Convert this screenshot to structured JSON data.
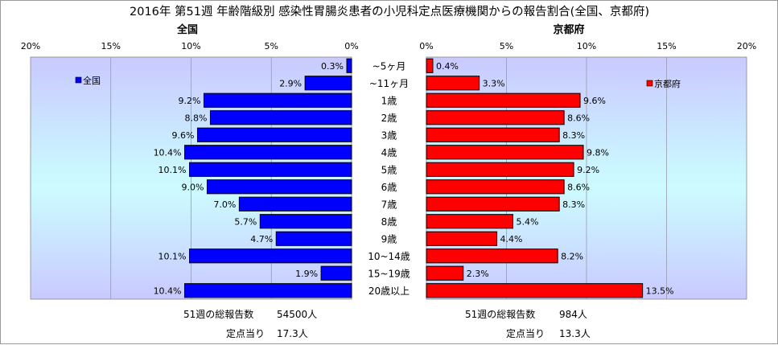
{
  "title": "2016年 第51週 年齢階級別 感染性胃腸炎患者の小児科定点医療機関からの報告割合(全国、京都府)",
  "left_panel": {
    "header": "全国",
    "legend": "全国",
    "color": "#0000ff",
    "summary_total_label": "51週の総報告数",
    "summary_total_value": "54500人",
    "summary_per_label": "定点当り",
    "summary_per_value": "17.3人"
  },
  "right_panel": {
    "header": "京都府",
    "legend": "京都府",
    "color": "#ff0000",
    "summary_total_label": "51週の総報告数",
    "summary_total_value": "984人",
    "summary_per_label": "定点当り",
    "summary_per_value": "13.3人"
  },
  "chart_data": {
    "type": "bar",
    "orientation": "horizontal-butterfly",
    "categories": [
      "~5ヶ月",
      "~11ヶ月",
      "1歳",
      "2歳",
      "3歳",
      "4歳",
      "5歳",
      "6歳",
      "7歳",
      "8歳",
      "9歳",
      "10~14歳",
      "15~19歳",
      "20歳以上"
    ],
    "series": [
      {
        "name": "全国",
        "values": [
          0.3,
          2.9,
          9.2,
          8.8,
          9.6,
          10.4,
          10.1,
          9.0,
          7.0,
          5.7,
          4.7,
          10.1,
          1.9,
          10.4
        ],
        "labels": [
          "0.3%",
          "2.9%",
          "9.2%",
          "8.8%",
          "9.6%",
          "10.4%",
          "10.1%",
          "9.0%",
          "7.0%",
          "5.7%",
          "4.7%",
          "10.1%",
          "1.9%",
          "10.4%"
        ]
      },
      {
        "name": "京都府",
        "values": [
          0.4,
          3.3,
          9.6,
          8.6,
          8.3,
          9.8,
          9.2,
          8.6,
          8.3,
          5.4,
          4.4,
          8.2,
          2.3,
          13.5
        ],
        "labels": [
          "0.4%",
          "3.3%",
          "9.6%",
          "8.6%",
          "8.3%",
          "9.8%",
          "9.2%",
          "8.6%",
          "8.3%",
          "5.4%",
          "4.4%",
          "8.2%",
          "2.3%",
          "13.5%"
        ]
      }
    ],
    "xlim": [
      0,
      20
    ],
    "ticks_left": [
      "20%",
      "15%",
      "10%",
      "5%",
      "0%"
    ],
    "ticks_right": [
      "0%",
      "5%",
      "10%",
      "15%",
      "20%"
    ],
    "unit": "%"
  }
}
